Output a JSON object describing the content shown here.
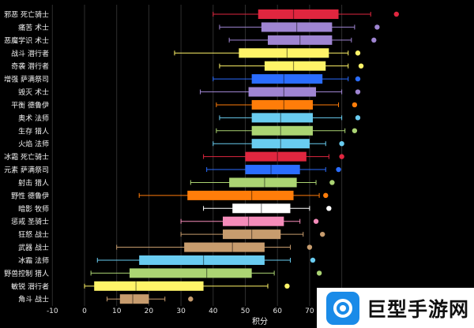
{
  "chart_data": {
    "type": "box",
    "orientation": "horizontal",
    "title": "",
    "xlabel": "积分",
    "ylabel": "",
    "xlim": [
      -10,
      88
    ],
    "xticks": [
      -10,
      0,
      10,
      20,
      30,
      40,
      50,
      60,
      70
    ],
    "grid": true,
    "series": [
      {
        "label": "邪恶 死亡骑士",
        "color": "#e0263f",
        "min": 40,
        "q1": 54,
        "median": 65,
        "q3": 79,
        "max": 89,
        "outliers": [
          97
        ]
      },
      {
        "label": "痛苦 术士",
        "color": "#9f85d2",
        "min": 42,
        "q1": 55,
        "median": 66,
        "q3": 77,
        "max": 84,
        "outliers": [
          91
        ]
      },
      {
        "label": "恶魔学识 术士",
        "color": "#9f85d2",
        "min": 45,
        "q1": 57,
        "median": 67,
        "q3": 77,
        "max": 83,
        "outliers": [
          90
        ]
      },
      {
        "label": "战斗 潜行者",
        "color": "#fff468",
        "min": 28,
        "q1": 48,
        "median": 63,
        "q3": 76,
        "max": 82,
        "outliers": [
          85
        ]
      },
      {
        "label": "奇袭 潜行者",
        "color": "#fff468",
        "min": 42,
        "q1": 56,
        "median": 65,
        "q3": 75,
        "max": 82,
        "outliers": [
          86
        ]
      },
      {
        "label": "增强 萨满祭司",
        "color": "#2b6dff",
        "min": 40,
        "q1": 52,
        "median": 62,
        "q3": 74,
        "max": 82,
        "outliers": [
          85
        ]
      },
      {
        "label": "毁灭 术士",
        "color": "#9f85d2",
        "min": 36,
        "q1": 51,
        "median": 62,
        "q3": 72,
        "max": 80,
        "outliers": [
          85
        ]
      },
      {
        "label": "平衡 德鲁伊",
        "color": "#ff7d0a",
        "min": 41,
        "q1": 52,
        "median": 62,
        "q3": 71,
        "max": 79,
        "outliers": [
          84
        ]
      },
      {
        "label": "奥术 法师",
        "color": "#69ccf0",
        "min": 42,
        "q1": 52,
        "median": 61,
        "q3": 71,
        "max": 80,
        "outliers": [
          85
        ]
      },
      {
        "label": "生存 猎人",
        "color": "#abd473",
        "min": 41,
        "q1": 52,
        "median": 61,
        "q3": 71,
        "max": 81,
        "outliers": [
          84
        ]
      },
      {
        "label": "火焰 法师",
        "color": "#69ccf0",
        "min": 40,
        "q1": 52,
        "median": 61,
        "q3": 70,
        "max": 75,
        "outliers": [
          80
        ]
      },
      {
        "label": "冰霜 死亡骑士",
        "color": "#e0263f",
        "min": 37,
        "q1": 50,
        "median": 60,
        "q3": 69,
        "max": 76,
        "outliers": [
          80
        ]
      },
      {
        "label": "元素 萨满祭司",
        "color": "#2b6dff",
        "min": 38,
        "q1": 50,
        "median": 58,
        "q3": 67,
        "max": 75,
        "outliers": [
          79
        ]
      },
      {
        "label": "射击 猎人",
        "color": "#abd473",
        "min": 33,
        "q1": 45,
        "median": 56,
        "q3": 66,
        "max": 72,
        "outliers": [
          77
        ]
      },
      {
        "label": "野性 德鲁伊",
        "color": "#ff7d0a",
        "min": 17,
        "q1": 32,
        "median": 52,
        "q3": 65,
        "max": 73,
        "outliers": [
          75
        ]
      },
      {
        "label": "暗影 牧师",
        "color": "#ffffff",
        "min": 37,
        "q1": 46,
        "median": 55,
        "q3": 64,
        "max": 70,
        "outliers": [
          76
        ]
      },
      {
        "label": "惩戒 圣骑士",
        "color": "#f58cba",
        "min": 30,
        "q1": 43,
        "median": 51,
        "q3": 62,
        "max": 67,
        "outliers": [
          72
        ]
      },
      {
        "label": "狂怒 战士",
        "color": "#c79c6e",
        "min": 30,
        "q1": 43,
        "median": 52,
        "q3": 61,
        "max": 68,
        "outliers": [
          74
        ]
      },
      {
        "label": "武器 战士",
        "color": "#c79c6e",
        "min": 10,
        "q1": 31,
        "median": 46,
        "q3": 56,
        "max": 64,
        "outliers": [
          70
        ]
      },
      {
        "label": "冰霜 法师",
        "color": "#69ccf0",
        "min": 4,
        "q1": 17,
        "median": 37,
        "q3": 56,
        "max": 64,
        "outliers": [
          71
        ]
      },
      {
        "label": "野兽控制 猎人",
        "color": "#abd473",
        "min": 2,
        "q1": 14,
        "median": 38,
        "q3": 52,
        "max": 59,
        "outliers": [
          73
        ]
      },
      {
        "label": "敏锐 潜行者",
        "color": "#fff468",
        "min": 0,
        "q1": 3,
        "median": 16,
        "q3": 37,
        "max": 57,
        "outliers": [
          63
        ]
      },
      {
        "label": "角斗 战士",
        "color": "#c79c6e",
        "min": 7,
        "q1": 11,
        "median": 15,
        "q3": 20,
        "max": 25,
        "outliers": [
          33
        ]
      }
    ]
  },
  "watermark": {
    "text": "巨型手游网"
  }
}
